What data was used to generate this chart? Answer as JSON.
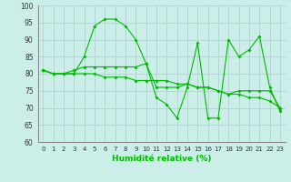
{
  "xlabel": "Humidité relative (%)",
  "ylabel": "",
  "background_color": "#cceee8",
  "line_color": "#00bb00",
  "grid_color": "#aacccc",
  "ylim": [
    60,
    100
  ],
  "xlim": [
    -0.5,
    23.5
  ],
  "yticks": [
    60,
    65,
    70,
    75,
    80,
    85,
    90,
    95,
    100
  ],
  "xticks": [
    0,
    1,
    2,
    3,
    4,
    5,
    6,
    7,
    8,
    9,
    10,
    11,
    12,
    13,
    14,
    15,
    16,
    17,
    18,
    19,
    20,
    21,
    22,
    23
  ],
  "series": [
    [
      81,
      80,
      80,
      80,
      85,
      94,
      96,
      96,
      94,
      90,
      83,
      73,
      71,
      67,
      76,
      89,
      67,
      67,
      90,
      85,
      87,
      91,
      76,
      69
    ],
    [
      81,
      80,
      80,
      81,
      82,
      82,
      82,
      82,
      82,
      82,
      83,
      76,
      76,
      76,
      77,
      76,
      76,
      75,
      74,
      75,
      75,
      75,
      75,
      70
    ],
    [
      81,
      80,
      80,
      80,
      80,
      80,
      79,
      79,
      79,
      78,
      78,
      78,
      78,
      77,
      77,
      76,
      76,
      75,
      74,
      74,
      73,
      73,
      72,
      70
    ]
  ]
}
